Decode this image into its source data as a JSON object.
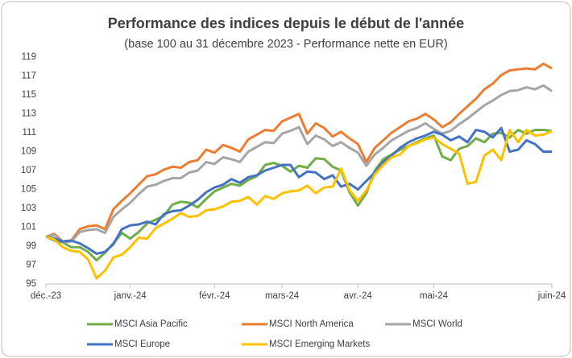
{
  "chart_data": {
    "type": "line",
    "title": "Performance des indices depuis le début de l'année",
    "subtitle": "(base 100 au 31 décembre 2023 - Performance nette en EUR)",
    "categories": [
      "déc.-23",
      null,
      null,
      null,
      null,
      null,
      null,
      null,
      null,
      null,
      "janv.-24",
      null,
      null,
      null,
      null,
      null,
      null,
      null,
      null,
      null,
      "févr.-24",
      null,
      null,
      null,
      null,
      null,
      null,
      null,
      "mars-24",
      null,
      null,
      null,
      null,
      null,
      null,
      null,
      null,
      "avr.-24",
      null,
      null,
      null,
      null,
      null,
      null,
      null,
      null,
      "mai-24",
      null,
      null,
      null,
      null,
      null,
      null,
      null,
      null,
      null,
      null,
      null,
      null,
      null,
      "juin-24"
    ],
    "ylim": [
      95,
      119
    ],
    "yticks": [
      95,
      97,
      99,
      101,
      103,
      105,
      107,
      109,
      111,
      113,
      115,
      117,
      119
    ],
    "grid": false,
    "series": [
      {
        "name": "MSCI Asia Pacific",
        "color": "#70ad47",
        "values": [
          100,
          99.6,
          99.4,
          98.9,
          98.9,
          98.4,
          97.5,
          98.3,
          99.3,
          100.4,
          99.8,
          100.5,
          101.4,
          101.8,
          102.2,
          103.4,
          103.7,
          103.6,
          103.1,
          104.0,
          104.8,
          105.2,
          105.6,
          105.4,
          106.0,
          106.4,
          107.6,
          107.8,
          107.5,
          106.9,
          107.5,
          107.3,
          108.3,
          108.2,
          107.4,
          107.0,
          104.7,
          103.3,
          104.6,
          107.0,
          108.2,
          108.7,
          109.2,
          109.6,
          110.0,
          110.4,
          110.7,
          108.5,
          108.1,
          109.3,
          109.6,
          110.4,
          110.0,
          110.9,
          111.0,
          110.5,
          111.3,
          110.9,
          111.3,
          111.3,
          111.2
        ]
      },
      {
        "name": "MSCI North America",
        "color": "#ed7d31",
        "values": [
          100,
          100.3,
          99.5,
          99.6,
          100.8,
          101.1,
          101.2,
          100.8,
          102.9,
          103.8,
          104.6,
          105.5,
          106.4,
          106.6,
          107.1,
          107.4,
          107.3,
          107.9,
          108.1,
          109.2,
          108.9,
          109.7,
          109.4,
          109.0,
          110.3,
          110.8,
          111.3,
          111.2,
          112.2,
          112.6,
          113.0,
          110.9,
          112.0,
          111.5,
          110.6,
          111.1,
          110.4,
          109.8,
          107.9,
          109.4,
          110.2,
          111.0,
          111.6,
          112.2,
          112.5,
          113.0,
          112.4,
          111.6,
          112.1,
          113.0,
          113.8,
          114.6,
          115.6,
          116.2,
          117.1,
          117.6,
          117.7,
          117.8,
          117.7,
          118.3,
          117.8
        ]
      },
      {
        "name": "MSCI World",
        "color": "#a5a5a5",
        "values": [
          100,
          100.2,
          99.4,
          99.5,
          100.5,
          100.7,
          100.8,
          100.4,
          102.1,
          102.9,
          103.6,
          104.5,
          105.3,
          105.5,
          105.9,
          106.2,
          106.2,
          106.8,
          107.0,
          107.9,
          107.7,
          108.4,
          108.2,
          107.9,
          109.0,
          109.5,
          110.0,
          109.9,
          110.9,
          111.2,
          111.6,
          109.8,
          110.7,
          110.3,
          109.6,
          110.0,
          109.4,
          108.9,
          107.5,
          108.7,
          109.4,
          110.2,
          110.7,
          111.2,
          111.5,
          112.0,
          111.4,
          110.9,
          111.2,
          111.9,
          112.5,
          113.2,
          113.9,
          114.4,
          115.0,
          115.4,
          115.5,
          115.8,
          115.6,
          116.0,
          115.4
        ]
      },
      {
        "name": "MSCI Europe",
        "color": "#4472c4",
        "values": [
          100,
          99.8,
          99.5,
          99.6,
          99.3,
          98.8,
          98.2,
          98.4,
          99.2,
          100.8,
          101.2,
          101.3,
          101.6,
          101.3,
          102.4,
          102.7,
          102.8,
          103.3,
          103.9,
          104.7,
          105.2,
          105.5,
          106.1,
          105.7,
          106.3,
          106.5,
          107.0,
          107.3,
          107.6,
          107.6,
          106.3,
          106.9,
          106.8,
          106.1,
          106.5,
          105.3,
          105.6,
          105.0,
          105.9,
          106.8,
          107.9,
          108.6,
          109.4,
          110.0,
          110.4,
          110.7,
          111.1,
          110.8,
          110.2,
          110.6,
          110.0,
          111.3,
          111.1,
          110.5,
          111.5,
          109.0,
          109.2,
          110.2,
          109.8,
          109.0,
          109.0
        ]
      },
      {
        "name": "MSCI Emerging Markets",
        "color": "#ffc000",
        "values": [
          100,
          99.7,
          98.9,
          98.5,
          98.4,
          97.6,
          95.6,
          96.4,
          97.8,
          98.1,
          98.9,
          99.9,
          99.8,
          100.9,
          101.4,
          101.9,
          102.5,
          102.1,
          102.2,
          102.8,
          102.9,
          103.2,
          103.7,
          103.8,
          104.2,
          103.4,
          104.3,
          104.0,
          104.6,
          104.8,
          104.9,
          105.4,
          104.6,
          105.2,
          105.3,
          107.2,
          104.9,
          103.8,
          104.9,
          106.6,
          107.6,
          108.4,
          108.7,
          109.6,
          109.9,
          110.3,
          110.5,
          109.8,
          109.3,
          108.8,
          105.6,
          105.8,
          108.6,
          109.2,
          108.1,
          111.3,
          110.0,
          111.3,
          110.7,
          110.8,
          111.2
        ]
      }
    ]
  }
}
